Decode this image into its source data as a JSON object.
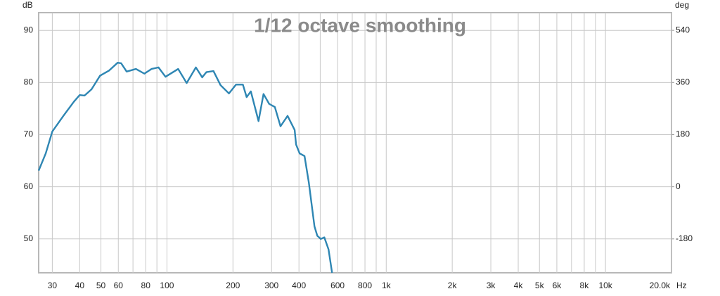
{
  "chart_data": {
    "type": "line",
    "title": "1/12 octave smoothing",
    "y_label": "dB",
    "y2_label": "deg",
    "x_label": "Hz",
    "x": [
      26,
      28,
      30,
      33.7,
      37.6,
      40,
      42.1,
      45.3,
      49.5,
      54.5,
      59.6,
      61.8,
      65.5,
      72.2,
      78.9,
      85,
      91.5,
      98.5,
      112.5,
      123,
      135.5,
      144.8,
      151.4,
      163,
      175.5,
      191.8,
      206.5,
      222,
      230.9,
      241.3,
      261.6,
      275.7,
      292.5,
      310.5,
      329.6,
      354.9,
      382.3,
      388.1,
      402.8,
      424.1,
      443.7,
      470.8,
      485,
      503.2,
      522,
      545.6,
      566.4
    ],
    "values": [
      63.1,
      66.4,
      70.6,
      73.6,
      76.3,
      77.6,
      77.5,
      78.7,
      81.3,
      82.3,
      83.8,
      83.7,
      82.1,
      82.6,
      81.7,
      82.6,
      82.9,
      81.1,
      82.6,
      79.9,
      82.9,
      81.0,
      82.0,
      82.2,
      79.5,
      77.9,
      79.6,
      79.6,
      77.2,
      78.3,
      72.6,
      77.8,
      75.9,
      75.3,
      71.6,
      73.6,
      70.9,
      68.1,
      66.4,
      65.9,
      60.8,
      52.4,
      50.6,
      50.0,
      50.3,
      48.0,
      43.5
    ],
    "color": "#2e86b3",
    "log_x": true,
    "grid": true,
    "xlim": [
      26,
      20000
    ],
    "ylim": [
      43.5,
      93.4
    ],
    "y2lim": [
      -297,
      601
    ],
    "xticks": [
      30,
      40,
      50,
      60,
      80,
      100,
      200,
      300,
      400,
      600,
      800,
      {
        "value": 1000,
        "label": "1k"
      },
      {
        "value": 2000,
        "label": "2k"
      },
      {
        "value": 3000,
        "label": "3k"
      },
      {
        "value": 4000,
        "label": "4k"
      },
      {
        "value": 5000,
        "label": "5k"
      },
      {
        "value": 6000,
        "label": "6k"
      },
      {
        "value": 8000,
        "label": "8k"
      },
      {
        "value": 10000,
        "label": "10k"
      },
      {
        "value": 20000,
        "label": "20.0k"
      }
    ],
    "x_minor_grid": [
      70,
      90,
      500,
      700,
      900,
      7000,
      9000
    ],
    "yticks": [
      50,
      60,
      70,
      80,
      90
    ],
    "y2ticks": [
      -180,
      0,
      180,
      360,
      540
    ]
  }
}
